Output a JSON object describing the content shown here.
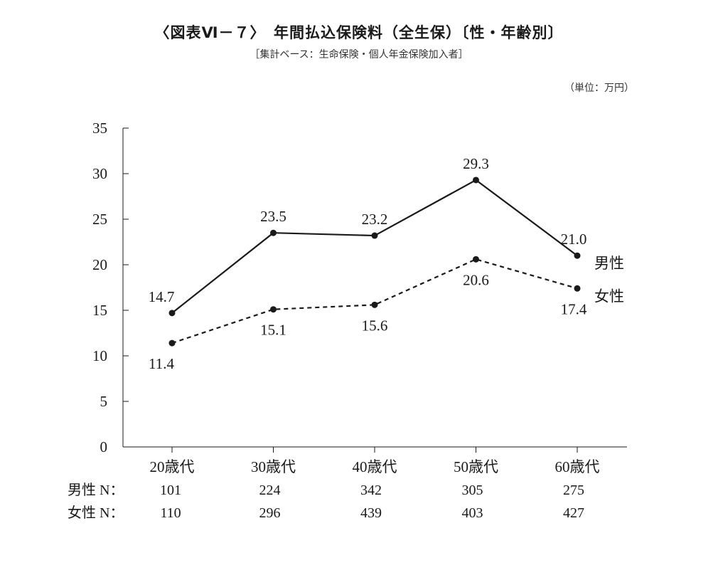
{
  "title": "〈図表Ⅵ－７〉　年間払込保険料（全生保）〔性・年齢別〕",
  "subtitle": "［集計ベース：生命保険・個人年金保険加入者］",
  "unit": "（単位：万円）",
  "chart_data": {
    "type": "line",
    "categories": [
      "20歳代",
      "30歳代",
      "40歳代",
      "50歳代",
      "60歳代"
    ],
    "ylim": [
      0,
      35
    ],
    "yticks": [
      0,
      5,
      10,
      15,
      20,
      25,
      30,
      35
    ],
    "grid": false,
    "series": [
      {
        "name": "男性",
        "values": [
          14.7,
          23.5,
          23.2,
          29.3,
          21.0
        ],
        "labels": [
          "14.7",
          "23.5",
          "23.2",
          "29.3",
          "21.0"
        ],
        "style": "solid",
        "label_pos": "above"
      },
      {
        "name": "女性",
        "values": [
          11.4,
          15.1,
          15.6,
          20.6,
          17.4
        ],
        "labels": [
          "11.4",
          "15.1",
          "15.6",
          "20.6",
          "17.4"
        ],
        "style": "dashed",
        "label_pos": "below"
      }
    ],
    "colors": {
      "line": "#1a1a1a"
    }
  },
  "n_table": [
    {
      "label": "男性 N：",
      "values": [
        "101",
        "224",
        "342",
        "305",
        "275"
      ]
    },
    {
      "label": "女性 N：",
      "values": [
        "110",
        "296",
        "439",
        "403",
        "427"
      ]
    }
  ]
}
